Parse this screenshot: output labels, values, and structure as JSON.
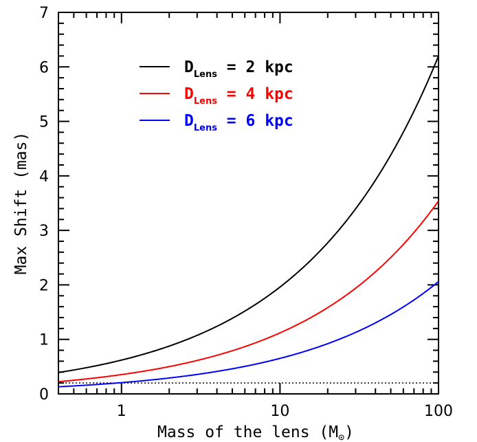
{
  "chart_data": {
    "type": "line",
    "xlabel": "Mass of the lens (M",
    "xlabel_symbol": "⊙",
    "xlabel_close": ")",
    "ylabel": "Max Shift (mas)",
    "x_scale": "log",
    "xlim": [
      0.4,
      100
    ],
    "ylim": [
      0,
      7
    ],
    "x_tick_labels": [
      "1",
      "10",
      "100"
    ],
    "y_tick_labels": [
      "0",
      "1",
      "2",
      "3",
      "4",
      "5",
      "6",
      "7"
    ],
    "grid": false,
    "legend_position": "top-left",
    "x": [
      0.4,
      1,
      2,
      5,
      10,
      20,
      50,
      100
    ],
    "series": [
      {
        "legend_main": "D",
        "legend_sub": "Lens",
        "legend_rest": " = 2 kpc",
        "color": "#000000",
        "values": [
          0.39,
          0.62,
          0.88,
          1.39,
          1.96,
          2.77,
          4.38,
          6.2
        ]
      },
      {
        "legend_main": "D",
        "legend_sub": "Lens",
        "legend_rest": " = 4 kpc",
        "color": "#ff0000",
        "values": [
          0.22,
          0.35,
          0.5,
          0.79,
          1.12,
          1.58,
          2.5,
          3.54
        ]
      },
      {
        "legend_main": "D",
        "legend_sub": "Lens",
        "legend_rest": " = 6 kpc",
        "color": "#0000ff",
        "values": [
          0.13,
          0.21,
          0.29,
          0.46,
          0.65,
          0.92,
          1.46,
          2.06
        ]
      }
    ],
    "reference_line": {
      "y": 0.2,
      "style": "dotted",
      "color": "#000000"
    }
  }
}
